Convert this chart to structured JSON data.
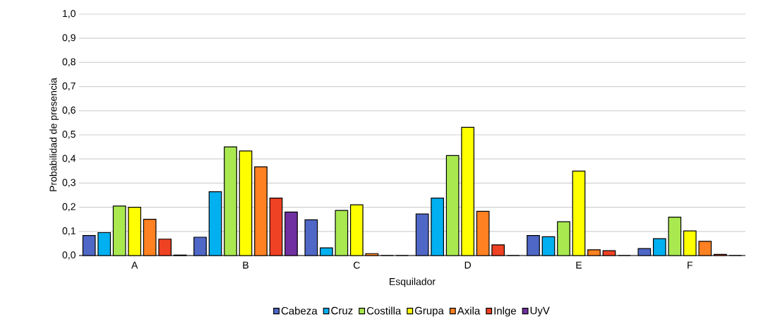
{
  "chart_data": {
    "type": "bar",
    "xlabel": "Esquilador",
    "ylabel": "Probabilidad de presencia",
    "categories": [
      "A",
      "B",
      "C",
      "D",
      "E",
      "F"
    ],
    "series": [
      {
        "name": "Cabeza",
        "color": "#4f67c6",
        "values": [
          0.083,
          0.076,
          0.148,
          0.172,
          0.083,
          0.029
        ]
      },
      {
        "name": "Cruz",
        "color": "#00b0f0",
        "values": [
          0.095,
          0.264,
          0.032,
          0.238,
          0.078,
          0.07
        ]
      },
      {
        "name": "Costilla",
        "color": "#a9e94f",
        "values": [
          0.205,
          0.45,
          0.187,
          0.414,
          0.14,
          0.159
        ]
      },
      {
        "name": "Grupa",
        "color": "#ffff00",
        "values": [
          0.2,
          0.433,
          0.21,
          0.531,
          0.35,
          0.102
        ]
      },
      {
        "name": "Axila",
        "color": "#ff8121",
        "values": [
          0.15,
          0.367,
          0.008,
          0.183,
          0.024,
          0.059
        ]
      },
      {
        "name": "Inlge",
        "color": "#ef4123",
        "values": [
          0.068,
          0.238,
          0,
          0.044,
          0.02,
          0.005
        ]
      },
      {
        "name": "UyV",
        "color": "#7030a0",
        "values": [
          0.002,
          0.18,
          0,
          0,
          0,
          0
        ]
      }
    ],
    "ylim": [
      0,
      1.0
    ],
    "yticks": [
      {
        "value": 0,
        "label": "0,0"
      },
      {
        "value": 0.1,
        "label": "0,1"
      },
      {
        "value": 0.2,
        "label": "0,2"
      },
      {
        "value": 0.3,
        "label": "0,3"
      },
      {
        "value": 0.4,
        "label": "0,4"
      },
      {
        "value": 0.5,
        "label": "0,5"
      },
      {
        "value": 0.6,
        "label": "0,6"
      },
      {
        "value": 0.7,
        "label": "0,7"
      },
      {
        "value": 0.8,
        "label": "0,8"
      },
      {
        "value": 0.9,
        "label": "0,9"
      },
      {
        "value": 1.0,
        "label": "1,0"
      }
    ],
    "grid": "y",
    "legend": "bottom"
  }
}
